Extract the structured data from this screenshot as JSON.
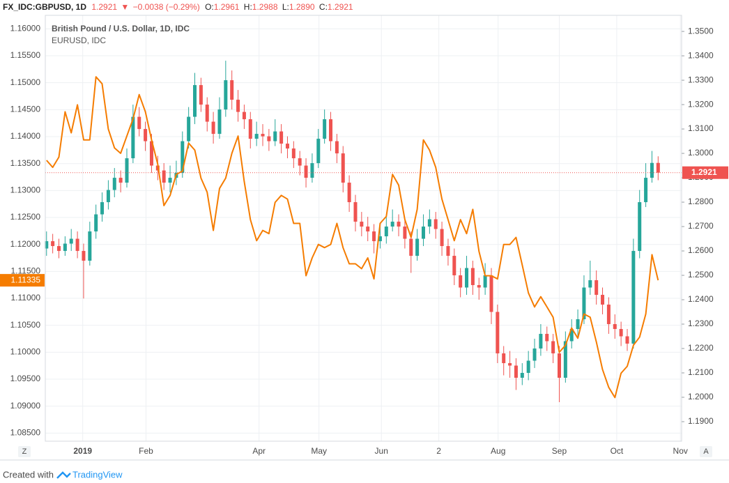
{
  "header": {
    "symbol": "FX_IDC:GBPUSD, 1D",
    "price": "1.2921",
    "change": "−0.0038 (−0.29%)",
    "ohlc": [
      {
        "label": "O:",
        "value": "1.2961"
      },
      {
        "label": "H:",
        "value": "1.2988"
      },
      {
        "label": "L:",
        "value": "1.2890"
      },
      {
        "label": "C:",
        "value": "1.2921"
      }
    ]
  },
  "chart_data": {
    "type": "candlestick",
    "xlim": [
      -0.2,
      102.8
    ],
    "xticks": [
      {
        "value": 5.86,
        "label": "2019"
      },
      {
        "value": 16.1,
        "label": "Feb"
      },
      {
        "value": 34.4,
        "label": "Apr"
      },
      {
        "value": 44.1,
        "label": "May"
      },
      {
        "value": 54.2,
        "label": "Jun"
      },
      {
        "value": 63.5,
        "label": "2"
      },
      {
        "value": 73.1,
        "label": "Aug"
      },
      {
        "value": 83.0,
        "label": "Sep"
      },
      {
        "value": 92.3,
        "label": "Oct"
      },
      {
        "value": 102.6,
        "label": "Nov"
      }
    ],
    "ylim": [
      1.0835,
      1.1625
    ],
    "yticks": [
      {
        "value": 1.16,
        "label": "1.16000"
      },
      {
        "value": 1.155,
        "label": "1.15500"
      },
      {
        "value": 1.15,
        "label": "1.15000"
      },
      {
        "value": 1.145,
        "label": "1.14500"
      },
      {
        "value": 1.14,
        "label": "1.14000"
      },
      {
        "value": 1.135,
        "label": "1.13500"
      },
      {
        "value": 1.13,
        "label": "1.13000"
      },
      {
        "value": 1.125,
        "label": "1.12500"
      },
      {
        "value": 1.12,
        "label": "1.12000"
      },
      {
        "value": 1.115,
        "label": "1.11500"
      },
      {
        "value": 1.11,
        "label": "1.11000"
      },
      {
        "value": 1.105,
        "label": "1.10500"
      },
      {
        "value": 1.1,
        "label": "1.10000"
      },
      {
        "value": 1.095,
        "label": "1.09500"
      },
      {
        "value": 1.09,
        "label": "1.09000"
      },
      {
        "value": 1.085,
        "label": "1.08500"
      }
    ],
    "y2lim": [
      1.182,
      1.3566
    ],
    "y2ticks": [
      {
        "value": 1.35,
        "label": "1.3500"
      },
      {
        "value": 1.34,
        "label": "1.3400"
      },
      {
        "value": 1.33,
        "label": "1.3300"
      },
      {
        "value": 1.32,
        "label": "1.3200"
      },
      {
        "value": 1.31,
        "label": "1.3100"
      },
      {
        "value": 1.3,
        "label": "1.3000"
      },
      {
        "value": 1.29,
        "label": "1.2900"
      },
      {
        "value": 1.28,
        "label": "1.2800"
      },
      {
        "value": 1.27,
        "label": "1.2700"
      },
      {
        "value": 1.26,
        "label": "1.2600"
      },
      {
        "value": 1.25,
        "label": "1.2500"
      },
      {
        "value": 1.24,
        "label": "1.2400"
      },
      {
        "value": 1.23,
        "label": "1.2300"
      },
      {
        "value": 1.22,
        "label": "1.2200"
      },
      {
        "value": 1.21,
        "label": "1.2100"
      },
      {
        "value": 1.2,
        "label": "1.2000"
      },
      {
        "value": 1.19,
        "label": "1.1900"
      }
    ],
    "grid": true,
    "series": [
      {
        "name": "British Pound / U.S. Dollar, 1D, IDC",
        "type": "candlestick",
        "axis": "y2",
        "up_color": "#26a69a",
        "down_color": "#ef5350",
        "values": [
          [
            1.261,
            1.268,
            1.258,
            1.264
          ],
          [
            1.264,
            1.267,
            1.259,
            1.262
          ],
          [
            1.262,
            1.265,
            1.257,
            1.26
          ],
          [
            1.26,
            1.266,
            1.258,
            1.263
          ],
          [
            1.263,
            1.269,
            1.26,
            1.265
          ],
          [
            1.265,
            1.268,
            1.257,
            1.26
          ],
          [
            1.26,
            1.263,
            1.2405,
            1.256
          ],
          [
            1.256,
            1.272,
            1.254,
            1.268
          ],
          [
            1.268,
            1.279,
            1.265,
            1.275
          ],
          [
            1.275,
            1.284,
            1.272,
            1.28
          ],
          [
            1.28,
            1.289,
            1.277,
            1.285
          ],
          [
            1.285,
            1.294,
            1.282,
            1.29
          ],
          [
            1.29,
            1.293,
            1.284,
            1.288
          ],
          [
            1.288,
            1.302,
            1.286,
            1.298
          ],
          [
            1.298,
            1.32,
            1.296,
            1.315
          ],
          [
            1.315,
            1.319,
            1.307,
            1.31
          ],
          [
            1.31,
            1.313,
            1.301,
            1.305
          ],
          [
            1.305,
            1.308,
            1.292,
            1.295
          ],
          [
            1.295,
            1.299,
            1.289,
            1.293
          ],
          [
            1.293,
            1.296,
            1.285,
            1.288
          ],
          [
            1.288,
            1.295,
            1.284,
            1.29
          ],
          [
            1.29,
            1.297,
            1.287,
            1.292
          ],
          [
            1.292,
            1.309,
            1.29,
            1.305
          ],
          [
            1.305,
            1.319,
            1.302,
            1.315
          ],
          [
            1.315,
            1.333,
            1.312,
            1.328
          ],
          [
            1.328,
            1.331,
            1.317,
            1.32
          ],
          [
            1.32,
            1.323,
            1.309,
            1.313
          ],
          [
            1.313,
            1.317,
            1.304,
            1.308
          ],
          [
            1.308,
            1.323,
            1.306,
            1.318
          ],
          [
            1.318,
            1.338,
            1.315,
            1.33
          ],
          [
            1.33,
            1.334,
            1.318,
            1.322
          ],
          [
            1.322,
            1.326,
            1.313,
            1.317
          ],
          [
            1.317,
            1.32,
            1.31,
            1.314
          ],
          [
            1.314,
            1.317,
            1.302,
            1.306
          ],
          [
            1.306,
            1.313,
            1.303,
            1.308
          ],
          [
            1.308,
            1.312,
            1.303,
            1.307
          ],
          [
            1.307,
            1.31,
            1.301,
            1.305
          ],
          [
            1.305,
            1.314,
            1.303,
            1.309
          ],
          [
            1.309,
            1.312,
            1.3,
            1.304
          ],
          [
            1.304,
            1.307,
            1.298,
            1.302
          ],
          [
            1.302,
            1.305,
            1.294,
            1.298
          ],
          [
            1.298,
            1.301,
            1.291,
            1.295
          ],
          [
            1.295,
            1.298,
            1.286,
            1.29
          ],
          [
            1.29,
            1.3,
            1.288,
            1.296
          ],
          [
            1.296,
            1.31,
            1.294,
            1.306
          ],
          [
            1.306,
            1.318,
            1.304,
            1.314
          ],
          [
            1.314,
            1.317,
            1.301,
            1.305
          ],
          [
            1.305,
            1.308,
            1.296,
            1.3
          ],
          [
            1.3,
            1.303,
            1.284,
            1.288
          ],
          [
            1.288,
            1.291,
            1.276,
            1.28
          ],
          [
            1.28,
            1.283,
            1.268,
            1.272
          ],
          [
            1.272,
            1.276,
            1.266,
            1.27
          ],
          [
            1.27,
            1.274,
            1.264,
            1.268
          ],
          [
            1.268,
            1.271,
            1.259,
            1.264
          ],
          [
            1.264,
            1.271,
            1.261,
            1.266
          ],
          [
            1.266,
            1.275,
            1.263,
            1.27
          ],
          [
            1.27,
            1.277,
            1.268,
            1.272
          ],
          [
            1.272,
            1.275,
            1.266,
            1.27
          ],
          [
            1.27,
            1.273,
            1.261,
            1.265
          ],
          [
            1.265,
            1.268,
            1.251,
            1.258
          ],
          [
            1.258,
            1.269,
            1.256,
            1.265
          ],
          [
            1.265,
            1.275,
            1.262,
            1.27
          ],
          [
            1.27,
            1.277,
            1.267,
            1.273
          ],
          [
            1.273,
            1.276,
            1.265,
            1.269
          ],
          [
            1.269,
            1.272,
            1.258,
            1.262
          ],
          [
            1.262,
            1.265,
            1.254,
            1.258
          ],
          [
            1.258,
            1.261,
            1.246,
            1.25
          ],
          [
            1.25,
            1.253,
            1.241,
            1.245
          ],
          [
            1.245,
            1.258,
            1.242,
            1.253
          ],
          [
            1.253,
            1.256,
            1.242,
            1.246
          ],
          [
            1.246,
            1.249,
            1.24,
            1.245
          ],
          [
            1.245,
            1.255,
            1.242,
            1.25
          ],
          [
            1.25,
            1.253,
            1.23,
            1.235
          ],
          [
            1.235,
            1.238,
            1.214,
            1.218
          ],
          [
            1.218,
            1.221,
            1.209,
            1.214
          ],
          [
            1.214,
            1.219,
            1.208,
            1.213
          ],
          [
            1.213,
            1.216,
            1.203,
            1.208
          ],
          [
            1.208,
            1.214,
            1.205,
            1.21
          ],
          [
            1.21,
            1.219,
            1.207,
            1.215
          ],
          [
            1.215,
            1.224,
            1.212,
            1.22
          ],
          [
            1.22,
            1.23,
            1.217,
            1.226
          ],
          [
            1.226,
            1.229,
            1.219,
            1.223
          ],
          [
            1.223,
            1.226,
            1.214,
            1.218
          ],
          [
            1.218,
            1.221,
            1.198,
            1.208
          ],
          [
            1.208,
            1.227,
            1.206,
            1.223
          ],
          [
            1.223,
            1.232,
            1.22,
            1.228
          ],
          [
            1.228,
            1.236,
            1.225,
            1.232
          ],
          [
            1.232,
            1.25,
            1.23,
            1.245
          ],
          [
            1.245,
            1.256,
            1.242,
            1.248
          ],
          [
            1.248,
            1.252,
            1.238,
            1.242
          ],
          [
            1.242,
            1.245,
            1.234,
            1.238
          ],
          [
            1.238,
            1.241,
            1.226,
            1.23
          ],
          [
            1.23,
            1.234,
            1.224,
            1.228
          ],
          [
            1.228,
            1.231,
            1.221,
            1.225
          ],
          [
            1.225,
            1.228,
            1.219,
            1.222
          ],
          [
            1.222,
            1.265,
            1.22,
            1.26
          ],
          [
            1.26,
            1.285,
            1.257,
            1.28
          ],
          [
            1.28,
            1.296,
            1.278,
            1.29
          ],
          [
            1.29,
            1.301,
            1.288,
            1.2961
          ],
          [
            1.2961,
            1.2988,
            1.289,
            1.2921
          ]
        ]
      },
      {
        "name": "EURUSD, IDC",
        "type": "line",
        "color": "#f57c00",
        "values": [
          1.1356,
          1.1343,
          1.1362,
          1.1446,
          1.1407,
          1.1459,
          1.1394,
          1.1394,
          1.1511,
          1.1498,
          1.1414,
          1.1379,
          1.1369,
          1.1401,
          1.1433,
          1.1478,
          1.1446,
          1.1394,
          1.1349,
          1.1272,
          1.1291,
          1.133,
          1.1336,
          1.1388,
          1.1375,
          1.1323,
          1.1297,
          1.1226,
          1.1304,
          1.1323,
          1.1369,
          1.1401,
          1.1317,
          1.1246,
          1.1207,
          1.1226,
          1.122,
          1.1278,
          1.1291,
          1.1284,
          1.1239,
          1.1239,
          1.1142,
          1.1175,
          1.12,
          1.1194,
          1.12,
          1.1239,
          1.1194,
          1.1164,
          1.1164,
          1.1155,
          1.1175,
          1.1136,
          1.1239,
          1.1252,
          1.133,
          1.131,
          1.1246,
          1.1213,
          1.1265,
          1.1394,
          1.1375,
          1.1343,
          1.1284,
          1.1246,
          1.1207,
          1.1246,
          1.122,
          1.1265,
          1.1187,
          1.1142,
          1.1142,
          1.1136,
          1.12,
          1.12,
          1.1213,
          1.1162,
          1.111,
          1.1084,
          1.1103,
          1.1084,
          1.1065,
          1.1,
          1.1013,
          1.1045,
          1.1026,
          1.1071,
          1.1065,
          1.1019,
          1.0968,
          1.0935,
          1.0916,
          1.0961,
          1.0974,
          1.1013,
          1.1028,
          1.1071,
          1.1181,
          1.11335
        ]
      }
    ]
  },
  "buttons": [
    "Z",
    "A"
  ],
  "footer": {
    "created": "Created with",
    "brand": "TradingView"
  }
}
